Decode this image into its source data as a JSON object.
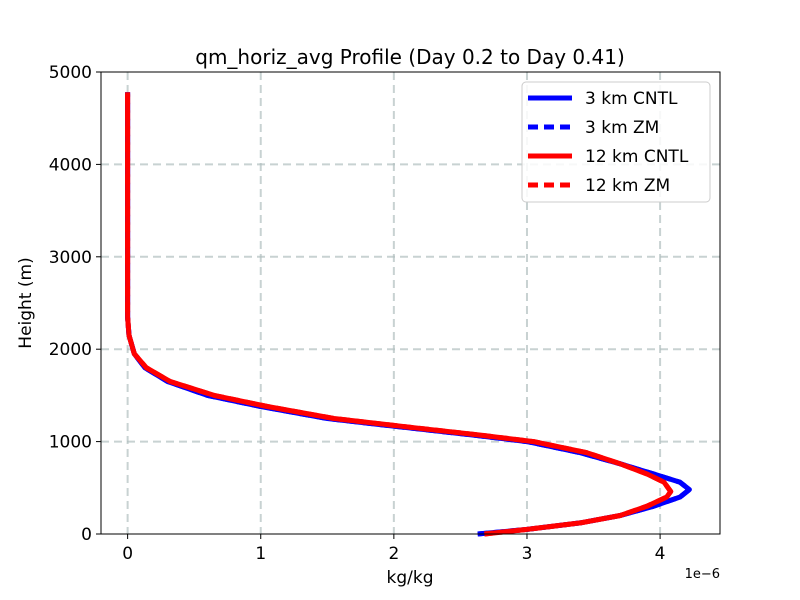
{
  "chart_data": {
    "type": "line",
    "title": "qm_horiz_avg Profile (Day 0.2 to Day 0.41)",
    "xlabel": "kg/kg",
    "ylabel": "Height (m)",
    "x_scale_label": "1e−6",
    "xlim": [
      -0.2,
      4.45
    ],
    "ylim": [
      0,
      5000
    ],
    "xticks": [
      0,
      1,
      2,
      3,
      4
    ],
    "xtick_labels": [
      "0",
      "1",
      "2",
      "3",
      "4"
    ],
    "yticks": [
      0,
      1000,
      2000,
      3000,
      4000,
      5000
    ],
    "ytick_labels": [
      "0",
      "1000",
      "2000",
      "3000",
      "4000",
      "5000"
    ],
    "grid": true,
    "legend_position": "upper right",
    "series": [
      {
        "name": "3 km CNTL",
        "color": "#0000ff",
        "style": "solid",
        "x": [
          2.63,
          3.0,
          3.4,
          3.7,
          3.95,
          4.15,
          4.22,
          4.15,
          3.95,
          3.7,
          3.4,
          3.0,
          2.6,
          2.1,
          1.5,
          1.0,
          0.6,
          0.3,
          0.13,
          0.05,
          0.01,
          0.0,
          0.0,
          0.0,
          0.0,
          0.0
        ],
        "y": [
          0,
          50,
          120,
          200,
          300,
          400,
          480,
          560,
          650,
          760,
          880,
          1000,
          1070,
          1150,
          1250,
          1380,
          1500,
          1650,
          1800,
          1950,
          2150,
          2350,
          3000,
          3500,
          4000,
          4780
        ]
      },
      {
        "name": "3 km ZM",
        "color": "#0000ff",
        "style": "dashed",
        "x": [
          2.63,
          3.0,
          3.4,
          3.7,
          3.95,
          4.15,
          4.22,
          4.15,
          3.95,
          3.7,
          3.4,
          3.0,
          2.6,
          2.1,
          1.5,
          1.0,
          0.6,
          0.3,
          0.13,
          0.05,
          0.01,
          0.0,
          0.0,
          0.0,
          0.0,
          0.0
        ],
        "y": [
          0,
          50,
          120,
          200,
          300,
          400,
          480,
          560,
          650,
          760,
          880,
          1000,
          1070,
          1150,
          1250,
          1380,
          1500,
          1650,
          1800,
          1950,
          2150,
          2350,
          3000,
          3500,
          4000,
          4780
        ]
      },
      {
        "name": "12 km CNTL",
        "color": "#ff0000",
        "style": "solid",
        "x": [
          2.68,
          3.0,
          3.4,
          3.7,
          3.9,
          4.05,
          4.08,
          4.03,
          3.9,
          3.7,
          3.45,
          3.05,
          2.65,
          2.15,
          1.55,
          1.05,
          0.65,
          0.32,
          0.14,
          0.05,
          0.01,
          0.0,
          0.0,
          0.0,
          0.0,
          0.0
        ],
        "y": [
          0,
          50,
          120,
          200,
          300,
          400,
          460,
          560,
          650,
          760,
          880,
          1000,
          1070,
          1150,
          1250,
          1380,
          1500,
          1650,
          1800,
          1950,
          2150,
          2350,
          3000,
          3500,
          4000,
          4780
        ]
      },
      {
        "name": "12 km ZM",
        "color": "#ff0000",
        "style": "dashed",
        "x": [
          2.68,
          3.0,
          3.4,
          3.7,
          3.9,
          4.05,
          4.08,
          4.03,
          3.9,
          3.7,
          3.45,
          3.05,
          2.65,
          2.15,
          1.55,
          1.05,
          0.65,
          0.32,
          0.14,
          0.05,
          0.01,
          0.0,
          0.0,
          0.0,
          0.0,
          0.0
        ],
        "y": [
          0,
          50,
          120,
          200,
          300,
          400,
          460,
          560,
          650,
          760,
          880,
          1000,
          1070,
          1150,
          1250,
          1380,
          1500,
          1650,
          1800,
          1950,
          2150,
          2350,
          3000,
          3500,
          4000,
          4780
        ]
      }
    ]
  }
}
